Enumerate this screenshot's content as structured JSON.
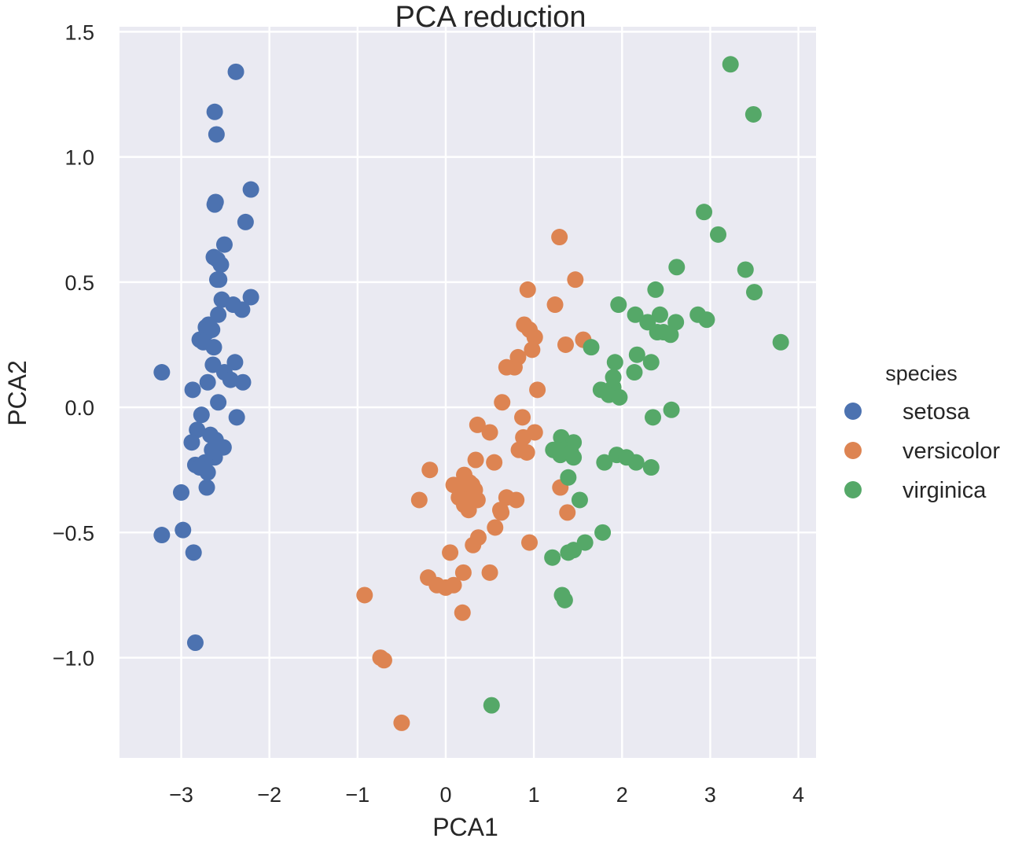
{
  "chart_data": {
    "type": "scatter",
    "title": "PCA reduction",
    "xlabel": "PCA1",
    "ylabel": "PCA2",
    "xlim": [
      -3.7,
      4.2
    ],
    "ylim": [
      -1.4,
      1.52
    ],
    "xticks": [
      -3,
      -2,
      -1,
      0,
      1,
      2,
      3,
      4
    ],
    "xtick_labels": [
      "−3",
      "−2",
      "−1",
      "0",
      "1",
      "2",
      "3",
      "4"
    ],
    "yticks": [
      -1.0,
      -0.5,
      0.0,
      0.5,
      1.0,
      1.5
    ],
    "ytick_labels": [
      "−1.0",
      "−0.5",
      "0.0",
      "0.5",
      "1.0",
      "1.5"
    ],
    "grid": true,
    "legend": {
      "title": "species",
      "placement": "right"
    },
    "series": [
      {
        "name": "setosa",
        "color": "#4c72b0",
        "points": [
          [
            -2.38,
            1.34
          ],
          [
            -2.62,
            1.18
          ],
          [
            -2.6,
            1.09
          ],
          [
            -2.21,
            0.87
          ],
          [
            -2.61,
            0.82
          ],
          [
            -2.62,
            0.81
          ],
          [
            -2.27,
            0.74
          ],
          [
            -2.51,
            0.65
          ],
          [
            -2.63,
            0.6
          ],
          [
            -2.59,
            0.59
          ],
          [
            -2.55,
            0.57
          ],
          [
            -2.57,
            0.51
          ],
          [
            -2.59,
            0.51
          ],
          [
            -2.21,
            0.44
          ],
          [
            -2.54,
            0.43
          ],
          [
            -2.41,
            0.41
          ],
          [
            -2.31,
            0.39
          ],
          [
            -2.58,
            0.37
          ],
          [
            -2.69,
            0.33
          ],
          [
            -2.72,
            0.32
          ],
          [
            -2.65,
            0.31
          ],
          [
            -2.71,
            0.3
          ],
          [
            -2.79,
            0.27
          ],
          [
            -2.75,
            0.26
          ],
          [
            -2.63,
            0.24
          ],
          [
            -2.39,
            0.18
          ],
          [
            -2.64,
            0.17
          ],
          [
            -2.51,
            0.14
          ],
          [
            -2.44,
            0.11
          ],
          [
            -2.3,
            0.1
          ],
          [
            -2.7,
            0.1
          ],
          [
            -2.87,
            0.07
          ],
          [
            -2.58,
            0.02
          ],
          [
            -3.22,
            0.14
          ],
          [
            -2.77,
            -0.03
          ],
          [
            -2.37,
            -0.04
          ],
          [
            -2.82,
            -0.09
          ],
          [
            -2.67,
            -0.11
          ],
          [
            -2.61,
            -0.13
          ],
          [
            -2.88,
            -0.14
          ],
          [
            -2.52,
            -0.16
          ],
          [
            -2.65,
            -0.17
          ],
          [
            -2.62,
            -0.2
          ],
          [
            -2.73,
            -0.22
          ],
          [
            -2.84,
            -0.23
          ],
          [
            -2.79,
            -0.24
          ],
          [
            -2.7,
            -0.26
          ],
          [
            -2.71,
            -0.32
          ],
          [
            -3.0,
            -0.34
          ],
          [
            -2.98,
            -0.49
          ],
          [
            -3.22,
            -0.51
          ],
          [
            -2.86,
            -0.58
          ],
          [
            -2.84,
            -0.94
          ]
        ]
      },
      {
        "name": "versicolor",
        "color": "#dd8452",
        "points": [
          [
            1.29,
            0.68
          ],
          [
            1.47,
            0.51
          ],
          [
            0.93,
            0.47
          ],
          [
            1.24,
            0.41
          ],
          [
            0.89,
            0.33
          ],
          [
            0.95,
            0.31
          ],
          [
            1.01,
            0.28
          ],
          [
            1.56,
            0.27
          ],
          [
            1.36,
            0.25
          ],
          [
            0.82,
            0.2
          ],
          [
            0.98,
            0.23
          ],
          [
            0.78,
            0.16
          ],
          [
            0.69,
            0.16
          ],
          [
            1.04,
            0.07
          ],
          [
            0.64,
            0.02
          ],
          [
            0.87,
            -0.04
          ],
          [
            0.36,
            -0.07
          ],
          [
            0.5,
            -0.1
          ],
          [
            1.01,
            -0.1
          ],
          [
            0.88,
            -0.12
          ],
          [
            1.33,
            -0.16
          ],
          [
            0.83,
            -0.17
          ],
          [
            0.92,
            -0.18
          ],
          [
            0.34,
            -0.21
          ],
          [
            0.55,
            -0.22
          ],
          [
            -0.18,
            -0.25
          ],
          [
            0.21,
            -0.27
          ],
          [
            0.27,
            -0.3
          ],
          [
            0.3,
            -0.31
          ],
          [
            0.09,
            -0.31
          ],
          [
            0.17,
            -0.33
          ],
          [
            0.33,
            -0.33
          ],
          [
            0.15,
            -0.36
          ],
          [
            0.36,
            -0.37
          ],
          [
            0.8,
            -0.37
          ],
          [
            1.3,
            -0.32
          ],
          [
            0.69,
            -0.36
          ],
          [
            -0.3,
            -0.37
          ],
          [
            0.21,
            -0.37
          ],
          [
            0.21,
            -0.39
          ],
          [
            0.26,
            -0.41
          ],
          [
            0.62,
            -0.41
          ],
          [
            1.38,
            -0.42
          ],
          [
            0.63,
            -0.42
          ],
          [
            0.56,
            -0.48
          ],
          [
            0.37,
            -0.52
          ],
          [
            0.31,
            -0.55
          ],
          [
            0.95,
            -0.54
          ],
          [
            0.05,
            -0.58
          ],
          [
            0.2,
            -0.66
          ],
          [
            0.5,
            -0.66
          ],
          [
            -0.2,
            -0.68
          ],
          [
            0.09,
            -0.71
          ],
          [
            0.0,
            -0.72
          ],
          [
            -0.1,
            -0.71
          ],
          [
            0.19,
            -0.82
          ],
          [
            -0.92,
            -0.75
          ],
          [
            -0.74,
            -1.0
          ],
          [
            -0.7,
            -1.01
          ],
          [
            -0.5,
            -1.26
          ]
        ]
      },
      {
        "name": "virginica",
        "color": "#55a868",
        "points": [
          [
            3.23,
            1.37
          ],
          [
            3.49,
            1.17
          ],
          [
            2.93,
            0.78
          ],
          [
            3.09,
            0.69
          ],
          [
            2.62,
            0.56
          ],
          [
            3.4,
            0.55
          ],
          [
            3.5,
            0.46
          ],
          [
            2.38,
            0.47
          ],
          [
            1.96,
            0.41
          ],
          [
            2.43,
            0.37
          ],
          [
            2.15,
            0.37
          ],
          [
            2.86,
            0.37
          ],
          [
            2.96,
            0.35
          ],
          [
            2.29,
            0.34
          ],
          [
            2.4,
            0.3
          ],
          [
            2.61,
            0.34
          ],
          [
            2.47,
            0.3
          ],
          [
            2.55,
            0.29
          ],
          [
            1.65,
            0.24
          ],
          [
            3.8,
            0.26
          ],
          [
            2.17,
            0.21
          ],
          [
            1.92,
            0.18
          ],
          [
            2.33,
            0.18
          ],
          [
            2.14,
            0.14
          ],
          [
            1.9,
            0.12
          ],
          [
            1.9,
            0.08
          ],
          [
            1.76,
            0.07
          ],
          [
            1.85,
            0.05
          ],
          [
            1.97,
            0.04
          ],
          [
            2.56,
            -0.01
          ],
          [
            2.35,
            -0.04
          ],
          [
            1.31,
            -0.12
          ],
          [
            1.45,
            -0.14
          ],
          [
            1.22,
            -0.17
          ],
          [
            1.34,
            -0.17
          ],
          [
            1.42,
            -0.18
          ],
          [
            1.3,
            -0.19
          ],
          [
            1.94,
            -0.19
          ],
          [
            1.45,
            -0.2
          ],
          [
            2.05,
            -0.2
          ],
          [
            2.16,
            -0.22
          ],
          [
            1.8,
            -0.22
          ],
          [
            2.33,
            -0.24
          ],
          [
            1.39,
            -0.28
          ],
          [
            1.52,
            -0.37
          ],
          [
            1.78,
            -0.5
          ],
          [
            1.58,
            -0.54
          ],
          [
            1.45,
            -0.57
          ],
          [
            1.39,
            -0.58
          ],
          [
            1.21,
            -0.6
          ],
          [
            1.32,
            -0.75
          ],
          [
            1.35,
            -0.77
          ],
          [
            0.52,
            -1.19
          ]
        ]
      }
    ]
  }
}
